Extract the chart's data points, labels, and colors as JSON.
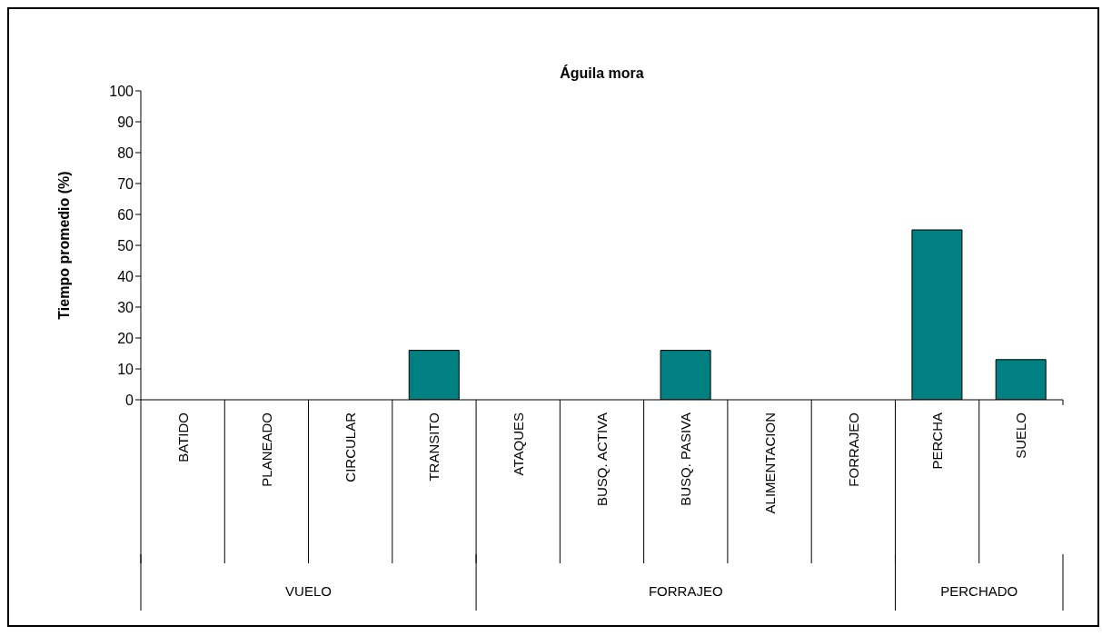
{
  "chart_data": {
    "type": "bar",
    "title": "Águila mora",
    "ylabel": "Tiempo promedio (%)",
    "categories": [
      "BATIDO",
      "PLANEADO",
      "CIRCULAR",
      "TRANSITO",
      "ATAQUES",
      "BUSQ. ACTIVA",
      "BUSQ. PASIVA",
      "ALIMENTACION",
      "FORRAJEO",
      "PERCHA",
      "SUELO"
    ],
    "values": [
      0,
      0,
      0,
      16,
      0,
      0,
      16,
      0,
      0,
      55,
      13
    ],
    "color": "#008080",
    "ylim": [
      0,
      100
    ],
    "yticks": [
      0,
      10,
      20,
      30,
      40,
      50,
      60,
      70,
      80,
      90,
      100
    ],
    "grid": false,
    "annotations": [
      "VUELO",
      "FORRAJEO",
      "PERCHADO"
    ]
  }
}
